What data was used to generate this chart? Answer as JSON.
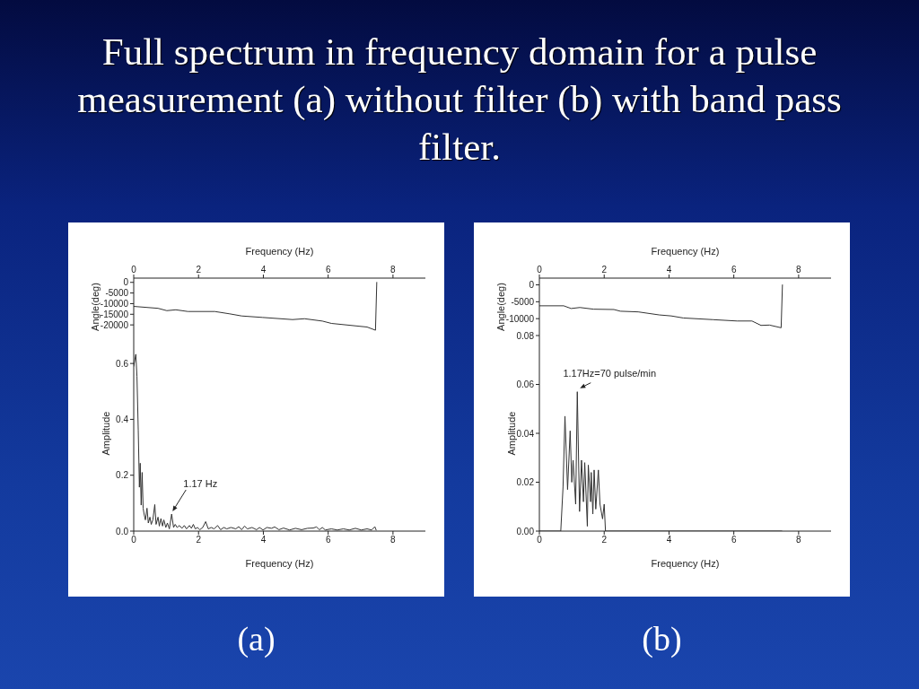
{
  "chart_data": [
    {
      "type": "line",
      "title": "Full spectrum in frequency domain for a pulse measurement (a) without filter (b) with band pass filter.",
      "xlabel": "Frequency (Hz)",
      "ylabel": "Angle(deg)",
      "color": "#333333",
      "x": [
        0,
        0.75,
        1.02,
        1.3,
        1.67,
        2.5,
        2.96,
        3.33,
        3.98,
        4.9,
        5.27,
        5.82,
        6.1,
        7.2,
        7.46,
        7.5
      ],
      "values": [
        -11300,
        -12200,
        -13300,
        -12900,
        -13700,
        -13700,
        -14800,
        -15800,
        -16500,
        -17500,
        -17100,
        -18200,
        -19300,
        -21000,
        -22500,
        0
      ],
      "xlim": [
        0,
        9
      ],
      "xticks": [
        0,
        2,
        4,
        6,
        8
      ],
      "ylim": [
        -25000,
        2000
      ],
      "yticks": [
        0,
        -5000,
        -10000,
        -15000,
        -20000
      ]
    },
    {
      "type": "line",
      "xlabel": "Frequency (Hz)",
      "ylabel": "Amplitude",
      "color": "#333333",
      "x": [
        0,
        0.065,
        0.1,
        0.14,
        0.175,
        0.2,
        0.23,
        0.26,
        0.29,
        0.32,
        0.36,
        0.41,
        0.45,
        0.5,
        0.54,
        0.59,
        0.65,
        0.69,
        0.75,
        0.79,
        0.84,
        0.89,
        0.93,
        0.99,
        1.04,
        1.1,
        1.17,
        1.23,
        1.28,
        1.34,
        1.41,
        1.49,
        1.56,
        1.63,
        1.72,
        1.78,
        1.84,
        1.9,
        1.97,
        2.04,
        2.13,
        2.22,
        2.3,
        2.39,
        2.48,
        2.59,
        2.68,
        2.78,
        2.87,
        3.0,
        3.15,
        3.24,
        3.33,
        3.42,
        3.51,
        3.65,
        3.79,
        3.88,
        3.99,
        4.11,
        4.25,
        4.35,
        4.48,
        4.62,
        4.81,
        4.99,
        5.18,
        5.36,
        5.54,
        5.64,
        5.73,
        5.82,
        5.91,
        6.1,
        6.28,
        6.47,
        6.65,
        6.84,
        7.02,
        7.2,
        7.34,
        7.44,
        7.48
      ],
      "values": [
        0.59,
        0.633,
        0.553,
        0.36,
        0.157,
        0.243,
        0.093,
        0.21,
        0.082,
        0.061,
        0.04,
        0.082,
        0.029,
        0.05,
        0.024,
        0.04,
        0.095,
        0.024,
        0.05,
        0.018,
        0.045,
        0.018,
        0.04,
        0.013,
        0.029,
        0.008,
        0.061,
        0.013,
        0.024,
        0.013,
        0.02,
        0.01,
        0.02,
        0.008,
        0.02,
        0.01,
        0.024,
        0.008,
        0.013,
        0.005,
        0.013,
        0.034,
        0.008,
        0.013,
        0.008,
        0.02,
        0.005,
        0.013,
        0.008,
        0.013,
        0.008,
        0.016,
        0.005,
        0.018,
        0.008,
        0.013,
        0.005,
        0.013,
        0.004,
        0.013,
        0.01,
        0.015,
        0.005,
        0.011,
        0.004,
        0.01,
        0.005,
        0.01,
        0.011,
        0.015,
        0.005,
        0.013,
        0.004,
        0.008,
        0.004,
        0.008,
        0.004,
        0.01,
        0.004,
        0.008,
        0.004,
        0.016,
        0.004
      ],
      "xlim": [
        0,
        9
      ],
      "xticks": [
        0,
        2,
        4,
        6,
        8
      ],
      "ylim": [
        0,
        0.7
      ],
      "yticks": [
        {
          "value": 0,
          "label": "0.0"
        },
        0.2,
        0.4,
        0.6
      ],
      "annotations": [
        {
          "text": "1.17 Hz",
          "x": 1.17,
          "y": 0.061
        },
        "(a)"
      ]
    },
    {
      "type": "line",
      "xlabel": "Frequency (Hz)",
      "ylabel": "Angle(deg)",
      "color": "#333333",
      "x": [
        0,
        0.75,
        0.98,
        1.25,
        1.67,
        2.3,
        2.5,
        3.05,
        3.7,
        4.07,
        4.44,
        5.36,
        6.1,
        6.56,
        6.84,
        7.1,
        7.46,
        7.5
      ],
      "values": [
        -6200,
        -6200,
        -7000,
        -6700,
        -7200,
        -7300,
        -7800,
        -8000,
        -8900,
        -9200,
        -9800,
        -10300,
        -10700,
        -10700,
        -12000,
        -11900,
        -12700,
        0
      ],
      "xlim": [
        0,
        9
      ],
      "xticks": [
        0,
        2,
        4,
        6,
        8
      ],
      "ylim": [
        -15000,
        2000
      ],
      "yticks": [
        0,
        -5000,
        -10000
      ]
    },
    {
      "type": "line",
      "xlabel": "Frequency (Hz)",
      "ylabel": "Amplitude",
      "color": "#333333",
      "x": [
        0,
        0.66,
        0.73,
        0.79,
        0.87,
        0.95,
        1.0,
        1.04,
        1.12,
        1.17,
        1.24,
        1.3,
        1.36,
        1.4,
        1.48,
        1.51,
        1.58,
        1.6,
        1.65,
        1.69,
        1.74,
        1.82,
        1.87,
        1.95,
        2.0,
        2.04,
        7.48
      ],
      "values": [
        0,
        0,
        0.018,
        0.047,
        0.017,
        0.041,
        0.02,
        0.029,
        0.011,
        0.057,
        0.008,
        0.029,
        0.012,
        0.028,
        0.002,
        0.027,
        0.012,
        0.024,
        0.007,
        0.025,
        0.009,
        0.025,
        0.011,
        0.005,
        0.011,
        0,
        0
      ],
      "xlim": [
        0,
        9
      ],
      "xticks": [
        0,
        2,
        4,
        6,
        8
      ],
      "ylim": [
        0,
        0.08
      ],
      "yticks": [
        {
          "value": 0,
          "label": "0.00"
        },
        {
          "value": 0.02,
          "label": "0.02"
        },
        {
          "value": 0.04,
          "label": "0.04"
        },
        {
          "value": 0.06,
          "label": "0.06"
        },
        {
          "value": 0.08,
          "label": "0.08"
        }
      ],
      "annotations": [
        {
          "text": "1.17Hz=70 pulse/min",
          "x": 1.17,
          "y": 0.057
        },
        "(b)"
      ]
    }
  ]
}
